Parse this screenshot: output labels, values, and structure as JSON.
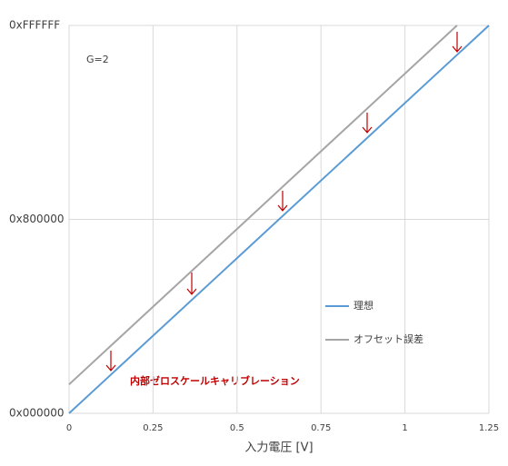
{
  "chart_data": {
    "type": "line",
    "annotations": [
      "G=2",
      "内部ゼロスケールキャリブレーション"
    ],
    "xlabel": "入力電圧 [V]",
    "xlim": [
      0,
      1.25
    ],
    "xticks": [
      0,
      0.25,
      0.5,
      0.75,
      1,
      1.25
    ],
    "ylim": [
      0,
      16777215
    ],
    "yticks": [
      {
        "value": 0,
        "label": "0x000000"
      },
      {
        "value": 8388608,
        "label": "0x800000"
      },
      {
        "value": 16777215,
        "label": "0xFFFFFF"
      }
    ],
    "grid": true,
    "legend": "right",
    "series": [
      {
        "name": "理想",
        "color": "#5b9bd5",
        "x": [
          0,
          1.25
        ],
        "values": [
          0,
          16777215
        ]
      },
      {
        "name": "オフセット誤差",
        "color": "#a5a5a5",
        "x": [
          0,
          1.155
        ],
        "values": [
          1250000,
          16777215
        ]
      }
    ]
  }
}
